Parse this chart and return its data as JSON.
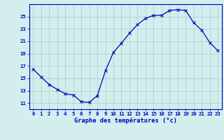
{
  "x": [
    0,
    1,
    2,
    3,
    4,
    5,
    6,
    7,
    8,
    9,
    10,
    11,
    12,
    13,
    14,
    15,
    16,
    17,
    18,
    19,
    20,
    21,
    22,
    23
  ],
  "y": [
    16.5,
    15.2,
    14.0,
    13.2,
    12.5,
    12.3,
    11.2,
    11.1,
    12.2,
    16.2,
    19.2,
    20.7,
    22.3,
    23.7,
    24.7,
    25.2,
    25.2,
    26.0,
    26.1,
    26.0,
    24.0,
    22.8,
    20.8,
    19.5
  ],
  "line_color": "#0000bb",
  "marker": "x",
  "marker_size": 2.5,
  "line_width": 0.9,
  "bg_color": "#d4eeee",
  "grid_color": "#aacccc",
  "xlabel": "Graphe des températures (°c)",
  "xlabel_color": "#0000bb",
  "tick_color": "#0000bb",
  "axis_color": "#0000bb",
  "ylim": [
    10.0,
    27.0
  ],
  "xlim": [
    -0.5,
    23.5
  ],
  "yticks": [
    11,
    13,
    15,
    17,
    19,
    21,
    23,
    25
  ],
  "xticks": [
    0,
    1,
    2,
    3,
    4,
    5,
    6,
    7,
    8,
    9,
    10,
    11,
    12,
    13,
    14,
    15,
    16,
    17,
    18,
    19,
    20,
    21,
    22,
    23
  ],
  "tick_fontsize": 5.2,
  "xlabel_fontsize": 6.2
}
